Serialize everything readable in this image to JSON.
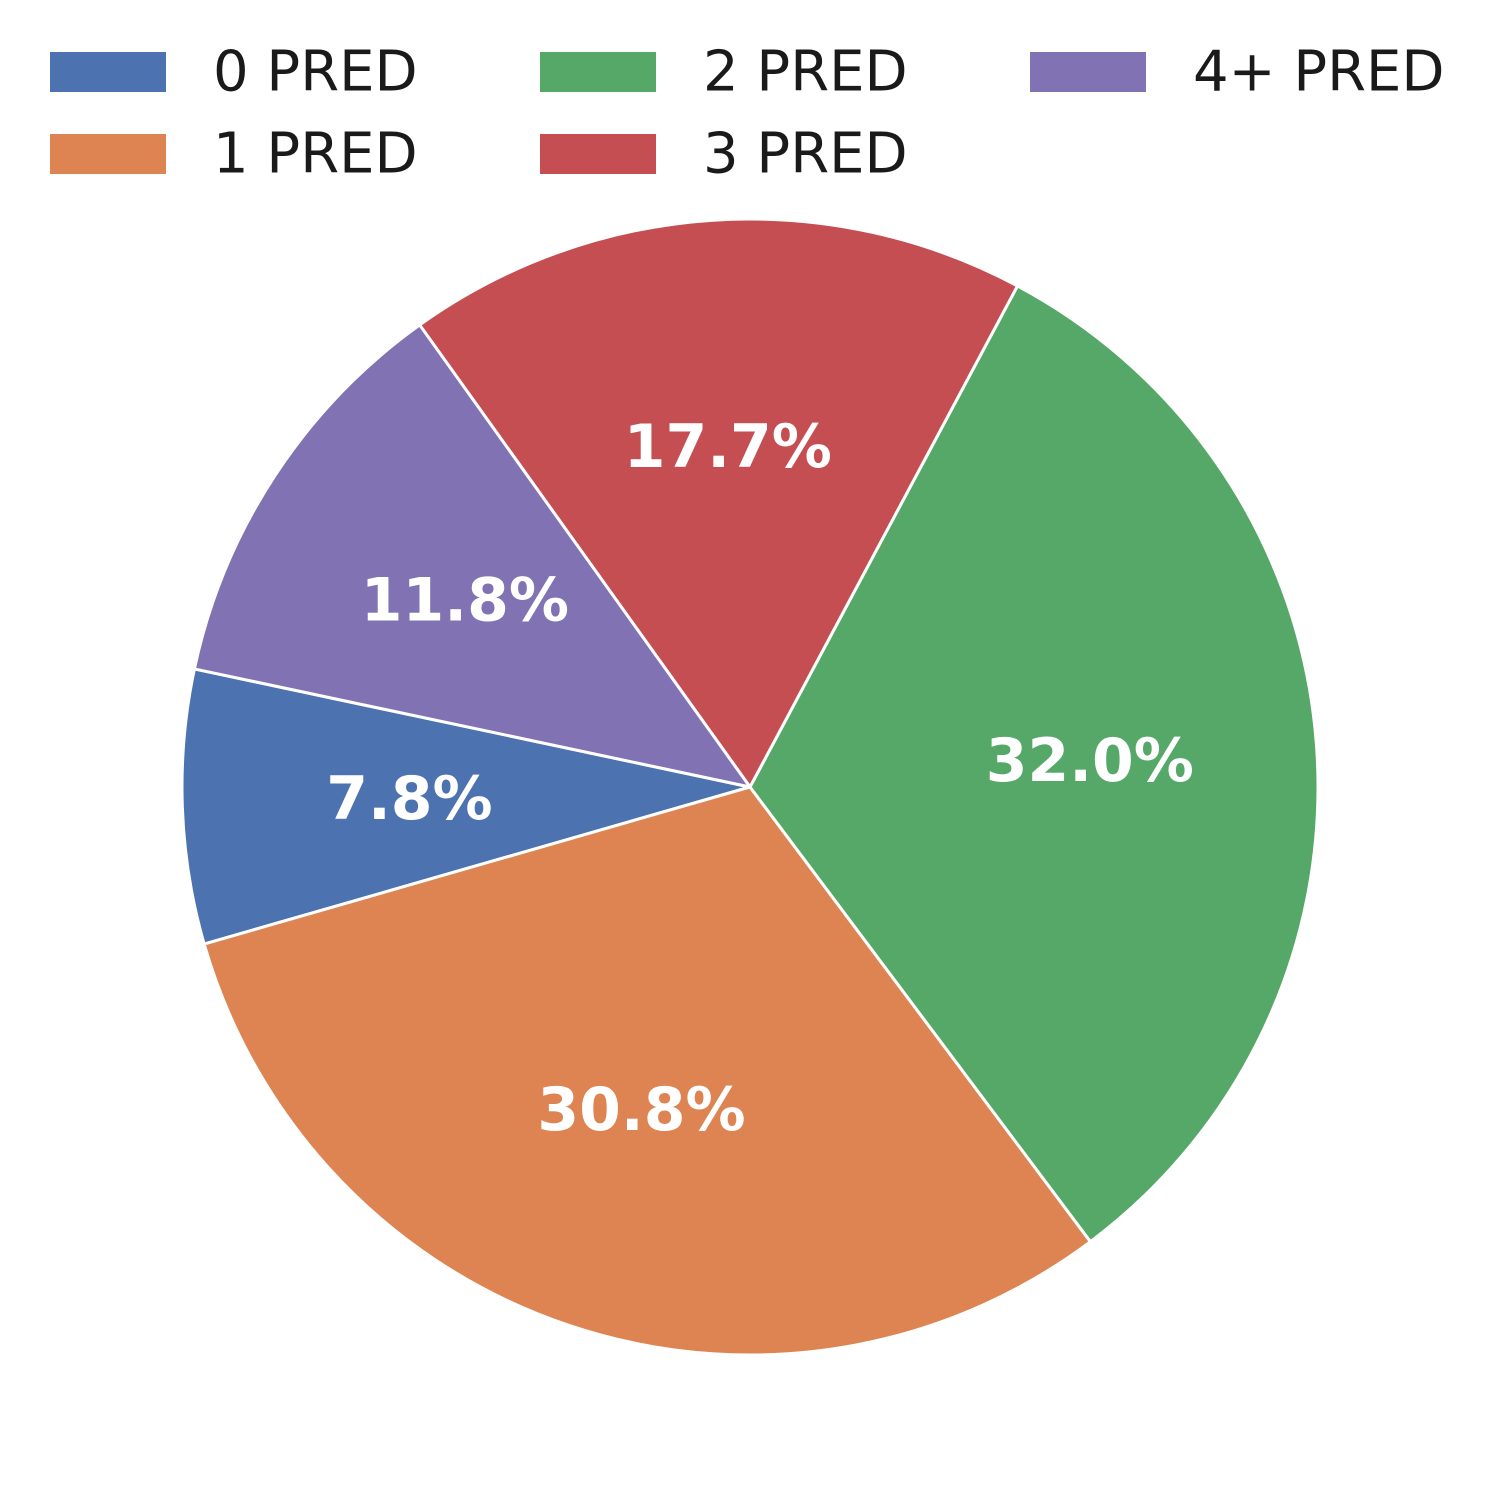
{
  "chart_data": {
    "type": "pie",
    "categories": [
      "0 PRED",
      "1 PRED",
      "2 PRED",
      "3 PRED",
      "4+ PRED"
    ],
    "values": [
      7.8,
      30.8,
      32.0,
      17.7,
      11.8
    ],
    "labels": [
      "7.8%",
      "30.8%",
      "32.0%",
      "17.7%",
      "11.8%"
    ],
    "colors": [
      "#4c72b0",
      "#dd8452",
      "#55a868",
      "#c44e52",
      "#8172b3"
    ],
    "legend_placement": "top"
  }
}
